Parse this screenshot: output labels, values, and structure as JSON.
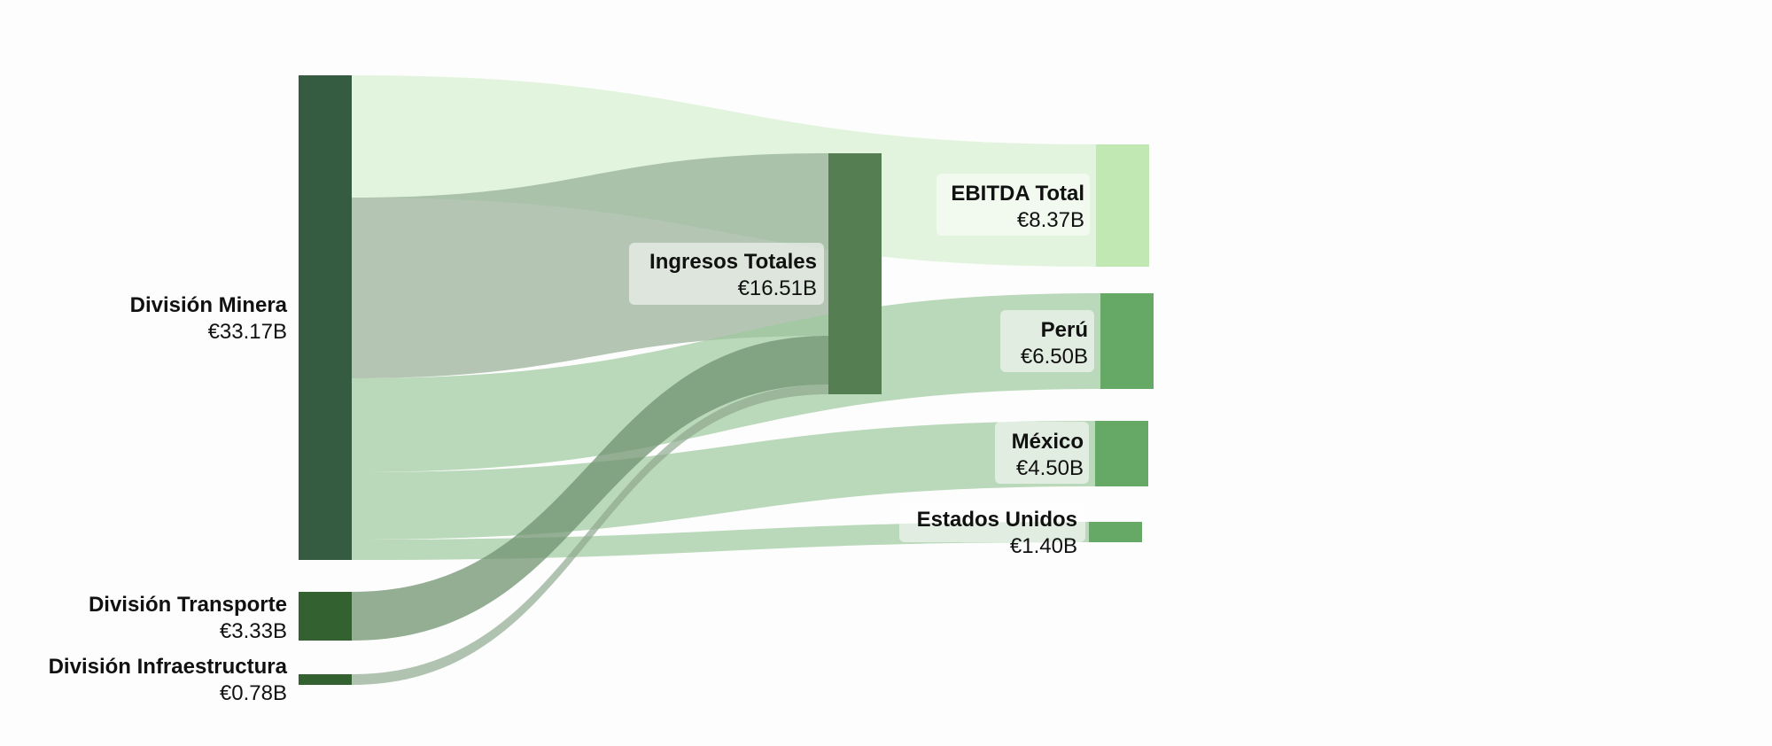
{
  "nodes": [
    {
      "id": "mining",
      "name": "División Minera",
      "value": "€33.17B",
      "color": "#355c40"
    },
    {
      "id": "transport",
      "name": "División Transporte",
      "value": "€3.33B",
      "color": "#33612f"
    },
    {
      "id": "infra",
      "name": "División Infraestructura",
      "value": "€0.78B",
      "color": "#33612f"
    },
    {
      "id": "revenue",
      "name": "Ingresos Totales",
      "value": "€16.51B",
      "color": "#557f52"
    },
    {
      "id": "ebitda",
      "name": "EBITDA Total",
      "value": "€8.37B",
      "color": "#c1e8b2"
    },
    {
      "id": "peru",
      "name": "Perú",
      "value": "€6.50B",
      "color": "#66a866"
    },
    {
      "id": "mexico",
      "name": "México",
      "value": "€4.50B",
      "color": "#66a866"
    },
    {
      "id": "usa",
      "name": "Estados Unidos",
      "value": "€1.40B",
      "color": "#66a866"
    }
  ],
  "links": [
    {
      "source": "mining",
      "target": "ebitda",
      "value": 8.37,
      "color": "#c9ebbf"
    },
    {
      "source": "mining",
      "target": "revenue",
      "value": 12.4,
      "color": "#8ea88e"
    },
    {
      "source": "mining",
      "target": "peru",
      "value": 6.5,
      "color": "#9cc79c"
    },
    {
      "source": "mining",
      "target": "mexico",
      "value": 4.5,
      "color": "#9cc79c"
    },
    {
      "source": "mining",
      "target": "usa",
      "value": 1.4,
      "color": "#9cc79c"
    },
    {
      "source": "transport",
      "target": "revenue",
      "value": 3.33,
      "color": "#6f936f"
    },
    {
      "source": "infra",
      "target": "revenue",
      "value": 0.78,
      "color": "#8ea88e"
    }
  ]
}
